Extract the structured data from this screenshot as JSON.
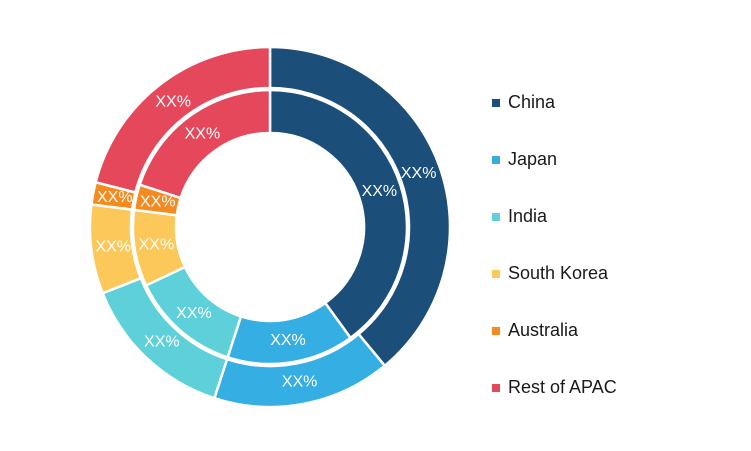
{
  "chart_data": {
    "type": "pie",
    "variant": "nested-donut",
    "categories": [
      "China",
      "Japan",
      "India",
      "South Korea",
      "Australia",
      "Rest of APAC"
    ],
    "colors": [
      "#1b4f7a",
      "#34aee3",
      "#5ed0d9",
      "#fdc85a",
      "#f58a1f",
      "#e5485a"
    ],
    "series": [
      {
        "ring": "outer",
        "values": [
          39,
          16,
          14,
          8,
          2,
          21
        ],
        "labels": [
          "XX%",
          "XX%",
          "XX%",
          "XX%",
          "XX%",
          "XX%"
        ]
      },
      {
        "ring": "inner",
        "values": [
          40,
          15,
          13,
          9,
          3,
          20
        ],
        "labels": [
          "XX%",
          "XX%",
          "XX%",
          "XX%",
          "XX%",
          "XX%"
        ]
      }
    ],
    "legend": {
      "position": "right",
      "entries": [
        "China",
        "Japan",
        "India",
        "South Korea",
        "Australia",
        "Rest of APAC"
      ]
    }
  }
}
